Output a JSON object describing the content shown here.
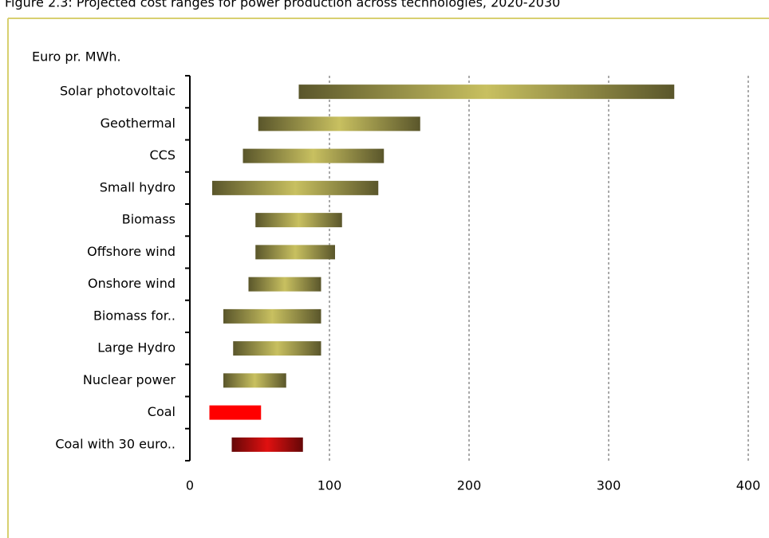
{
  "chart_data": {
    "type": "range-bar",
    "title": "Figure 2.3: Projected cost ranges for power production across technologies, 2020-2030",
    "y_label": "Euro pr. MWh.",
    "categories": [
      "Solar photovoltaic",
      "Geothermal",
      "CCS",
      "Small hydro",
      "Biomass",
      "Offshore wind",
      "Onshore wind",
      "Biomass for..",
      "Large Hydro",
      "Nuclear power",
      "Coal",
      "Coal with 30 euro.."
    ],
    "low": [
      78,
      49,
      38,
      16,
      47,
      47,
      42,
      24,
      31,
      24,
      14,
      30
    ],
    "high": [
      347,
      165,
      139,
      135,
      109,
      104,
      94,
      94,
      94,
      69,
      51,
      81
    ],
    "colors": [
      "#c8c060",
      "#c8c060",
      "#c8c060",
      "#c8c060",
      "#c8c060",
      "#c8c060",
      "#c8c060",
      "#c8c060",
      "#c8c060",
      "#c8c060",
      "#ff0000",
      "#e01010"
    ],
    "gradient": [
      true,
      true,
      true,
      true,
      true,
      true,
      true,
      true,
      true,
      true,
      false,
      true
    ],
    "xlim": [
      0,
      400
    ],
    "xticks": [
      0,
      100,
      200,
      300,
      400
    ],
    "grid": true
  }
}
